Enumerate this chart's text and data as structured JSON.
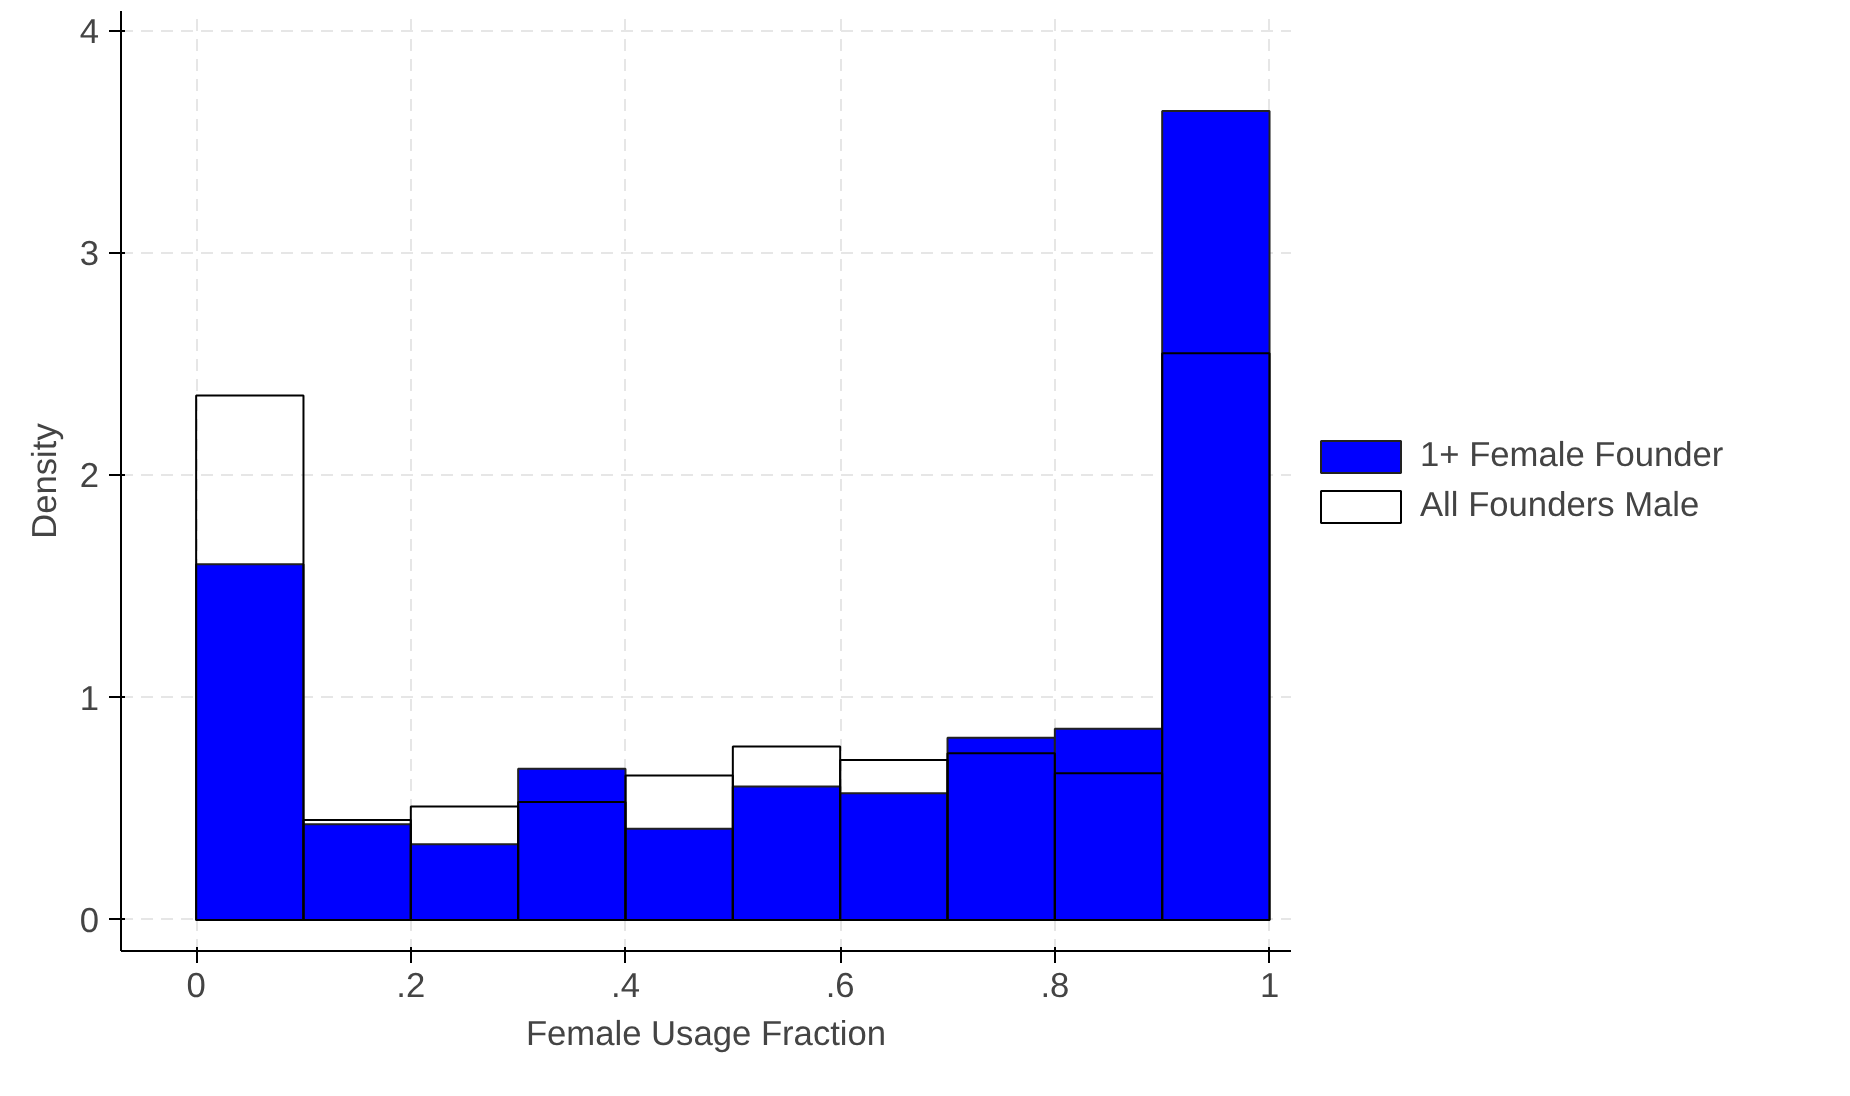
{
  "chart_data": {
    "type": "histogram",
    "xlabel": "Female Usage Fraction",
    "ylabel": "Density",
    "bins": [
      0,
      0.1,
      0.2,
      0.3,
      0.4,
      0.5,
      0.6,
      0.7,
      0.8,
      0.9,
      1
    ],
    "series": [
      {
        "name": "1+ Female Founder",
        "color": "#0000ff",
        "values": [
          1.6,
          0.43,
          0.34,
          0.68,
          0.41,
          0.6,
          0.57,
          0.82,
          0.86,
          3.64
        ]
      },
      {
        "name": "All Founders Male",
        "color": "#000000",
        "values": [
          2.36,
          0.45,
          0.51,
          0.53,
          0.65,
          0.78,
          0.72,
          0.75,
          0.66,
          2.55
        ]
      }
    ],
    "xlim": [
      -0.07,
      1.02
    ],
    "ylim": [
      -0.14,
      4.09
    ],
    "xticks": [
      0,
      {
        "value": 0.2,
        "label": ".2"
      },
      {
        "value": 0.4,
        "label": ".4"
      },
      {
        "value": 0.6,
        "label": ".6"
      },
      {
        "value": 0.8,
        "label": ".8"
      },
      1
    ],
    "yticks": [
      0,
      1,
      2,
      3,
      4
    ],
    "grid": true,
    "legend": "right"
  }
}
